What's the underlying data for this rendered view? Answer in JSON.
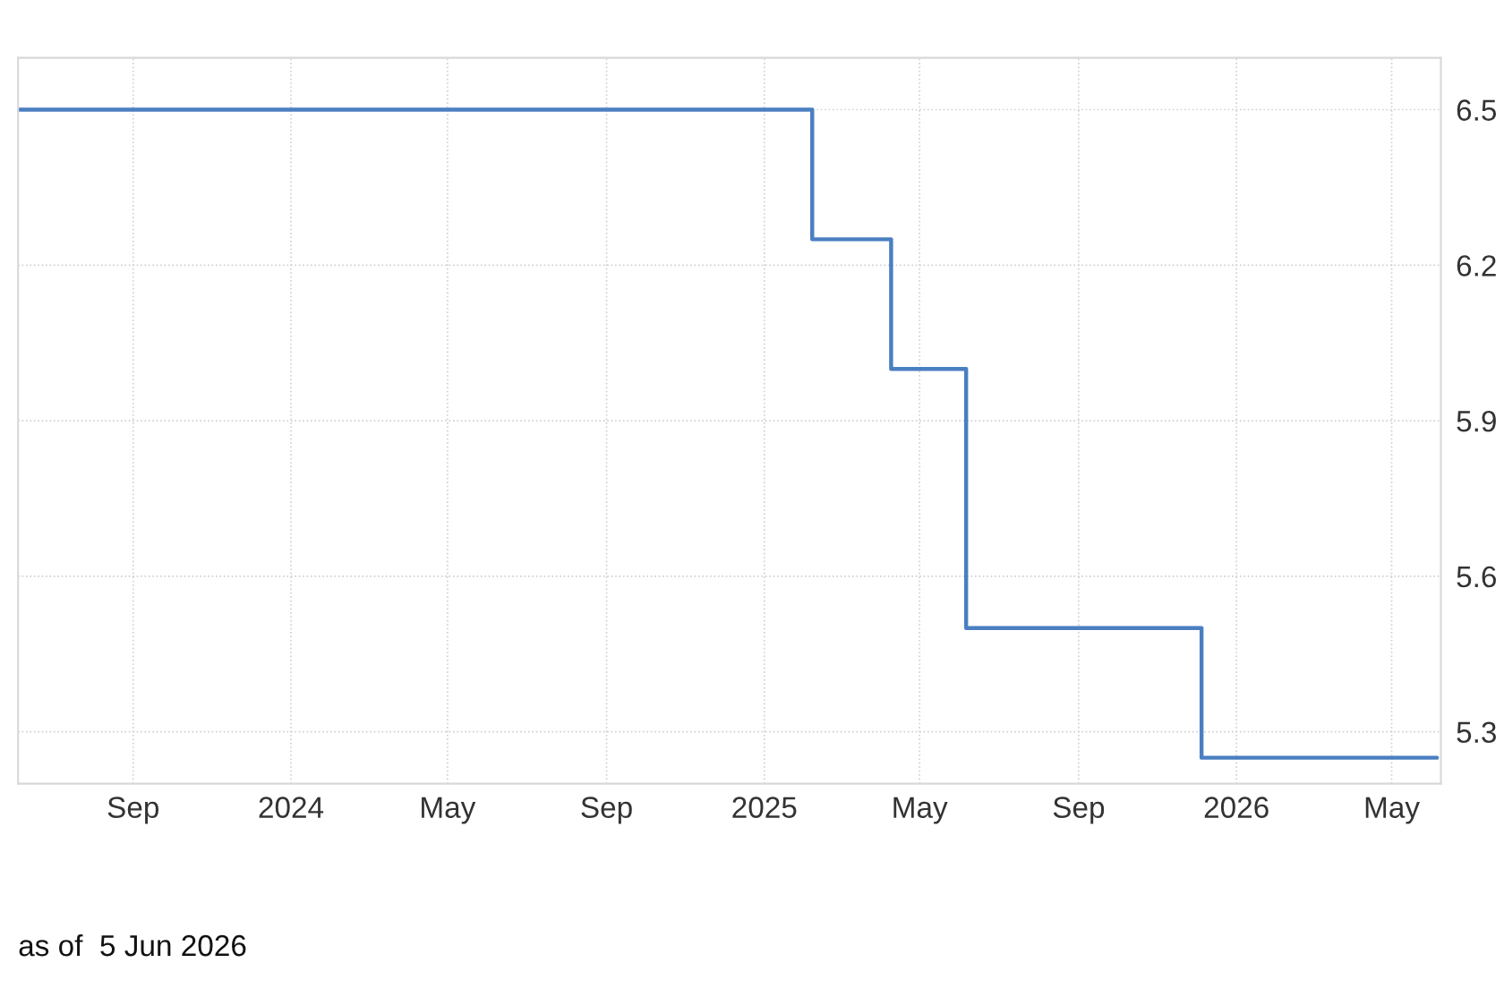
{
  "chart_data": {
    "type": "step",
    "x": [
      "2023-06-05",
      "2025-02-07",
      "2025-04-09",
      "2025-06-06",
      "2025-12-05",
      "2026-06-05"
    ],
    "series": [
      {
        "color": "#4a7fc1",
        "values": [
          6.5,
          6.25,
          6.0,
          5.5,
          5.25,
          5.25
        ]
      }
    ],
    "xlim": [
      "2023-06-04",
      "2026-06-08"
    ],
    "xticks": [
      {
        "value": "2023-09-01",
        "label": "Sep"
      },
      {
        "value": "2024-01-01",
        "label": "2024"
      },
      {
        "value": "2024-05-01",
        "label": "May"
      },
      {
        "value": "2024-09-01",
        "label": "Sep"
      },
      {
        "value": "2025-01-01",
        "label": "2025"
      },
      {
        "value": "2025-05-01",
        "label": "May"
      },
      {
        "value": "2025-09-01",
        "label": "Sep"
      },
      {
        "value": "2026-01-01",
        "label": "2026"
      },
      {
        "value": "2026-05-01",
        "label": "May"
      }
    ],
    "ylim": [
      5.2,
      6.6
    ],
    "yticks": [
      5.3,
      5.6,
      5.9,
      6.2,
      6.5
    ],
    "grid": true,
    "line_style": "solid",
    "marker": "none",
    "annotations": [
      "as of  5 Jun 2026"
    ]
  }
}
